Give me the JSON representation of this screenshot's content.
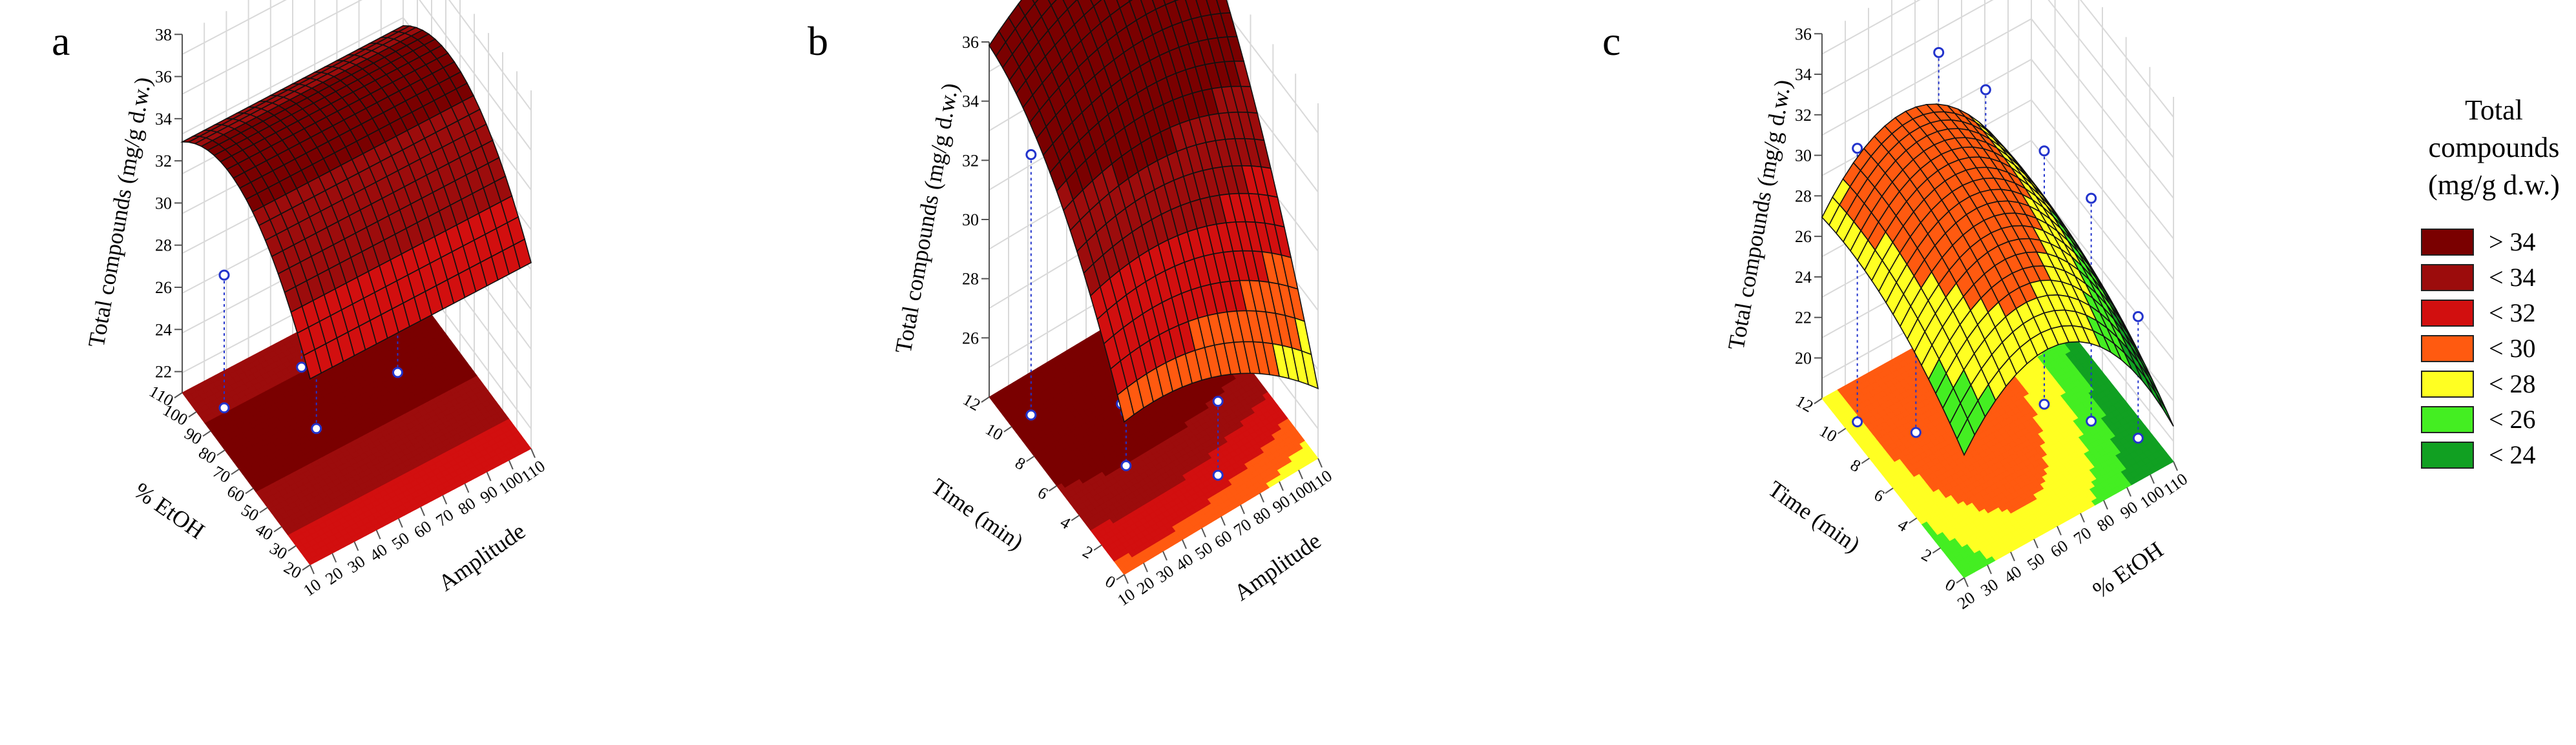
{
  "chart_data": [
    {
      "type": "surface3d",
      "panel": "a",
      "zlabel": "Total compounds (mg/g d.w.)",
      "xlabel": "Amplitude",
      "ylabel": "% EtOH",
      "x_ticks": [
        "10",
        "20",
        "30",
        "40",
        "50",
        "60",
        "70",
        "80",
        "90",
        "100",
        "110"
      ],
      "y_ticks": [
        "20",
        "30",
        "40",
        "50",
        "60",
        "70",
        "80",
        "90",
        "100",
        "110"
      ],
      "z_ticks": [
        "22",
        "24",
        "26",
        "28",
        "30",
        "32",
        "34",
        "36",
        "38"
      ],
      "xlim": [
        10,
        110
      ],
      "ylim": [
        20,
        110
      ],
      "zlim": [
        21,
        38
      ],
      "model": {
        "c": 26.0,
        "bx": 0.0,
        "by": 0.22,
        "bxy": 0.0,
        "qx": 0.0,
        "qy": -0.00143,
        "x0": 60,
        "y0": 0
      },
      "observed": [
        {
          "x": 20,
          "y": 96,
          "z": 27.3
        },
        {
          "x": 55,
          "y": 96,
          "z": 32.0
        },
        {
          "x": 45,
          "y": 70,
          "z": 30.5
        },
        {
          "x": 85,
          "y": 75,
          "z": 33.5
        }
      ]
    },
    {
      "type": "surface3d",
      "panel": "b",
      "zlabel": "Total compounds (mg/g d.w.)",
      "xlabel": "Amplitude",
      "ylabel": "Time (min)",
      "x_ticks": [
        "10",
        "20",
        "30",
        "40",
        "50",
        "60",
        "70",
        "80",
        "90",
        "100",
        "110"
      ],
      "y_ticks": [
        "0",
        "2",
        "4",
        "6",
        "8",
        "10",
        "12"
      ],
      "z_ticks": [
        "26",
        "28",
        "30",
        "32",
        "34",
        "36"
      ],
      "xlim": [
        10,
        110
      ],
      "ylim": [
        0,
        12
      ],
      "zlim": [
        24,
        36
      ],
      "model": {
        "c": 29.0,
        "bx": 0.02,
        "by": 1.0,
        "bxy": 0.004,
        "qx": -0.0004,
        "qy": -0.04,
        "x0": 0,
        "y0": 0
      },
      "observed": [
        {
          "x": 20,
          "y": 10,
          "z": 32.8
        },
        {
          "x": 55,
          "y": 8,
          "z": 34.0
        },
        {
          "x": 40,
          "y": 5,
          "z": 25.8
        },
        {
          "x": 70,
          "y": 2,
          "z": 26.5
        }
      ]
    },
    {
      "type": "surface3d",
      "panel": "c",
      "zlabel": "Total compounds (mg/g d.w.)",
      "xlabel": "% EtOH",
      "ylabel": "Time (min)",
      "x_ticks": [
        "20",
        "30",
        "40",
        "50",
        "60",
        "70",
        "80",
        "90",
        "100",
        "110"
      ],
      "y_ticks": [
        "0",
        "2",
        "4",
        "6",
        "8",
        "10",
        "12"
      ],
      "z_ticks": [
        "20",
        "22",
        "24",
        "26",
        "28",
        "30",
        "32",
        "34",
        "36"
      ],
      "xlim": [
        20,
        110
      ],
      "ylim": [
        0,
        12
      ],
      "zlim": [
        18,
        36
      ],
      "model": {
        "c": 27.0,
        "bx": 0.0,
        "by": 0.6,
        "bxy": 0.0,
        "qx": -0.0024,
        "qy": -0.03,
        "x0": 55,
        "y0": 0
      },
      "observed": [
        {
          "x": 25,
          "y": 10,
          "z": 31.5
        },
        {
          "x": 40,
          "y": 8,
          "z": 31.0
        },
        {
          "x": 60,
          "y": 10,
          "z": 34.0
        },
        {
          "x": 70,
          "y": 8,
          "z": 33.0
        },
        {
          "x": 85,
          "y": 6,
          "z": 30.5
        },
        {
          "x": 95,
          "y": 4,
          "z": 29.0
        },
        {
          "x": 105,
          "y": 2,
          "z": 24.0
        }
      ]
    }
  ],
  "legend": {
    "title_lines": [
      "Total",
      "compounds",
      "(mg/g d.w.)"
    ],
    "items": [
      {
        "label": "> 34",
        "color": "#7a0000"
      },
      {
        "label": "< 34",
        "color": "#9c0c0c"
      },
      {
        "label": "< 32",
        "color": "#d20f0f"
      },
      {
        "label": "< 30",
        "color": "#ff5a10"
      },
      {
        "label": "< 28",
        "color": "#ffff22"
      },
      {
        "label": "< 26",
        "color": "#44ee22"
      },
      {
        "label": "< 24",
        "color": "#11a022"
      }
    ]
  }
}
